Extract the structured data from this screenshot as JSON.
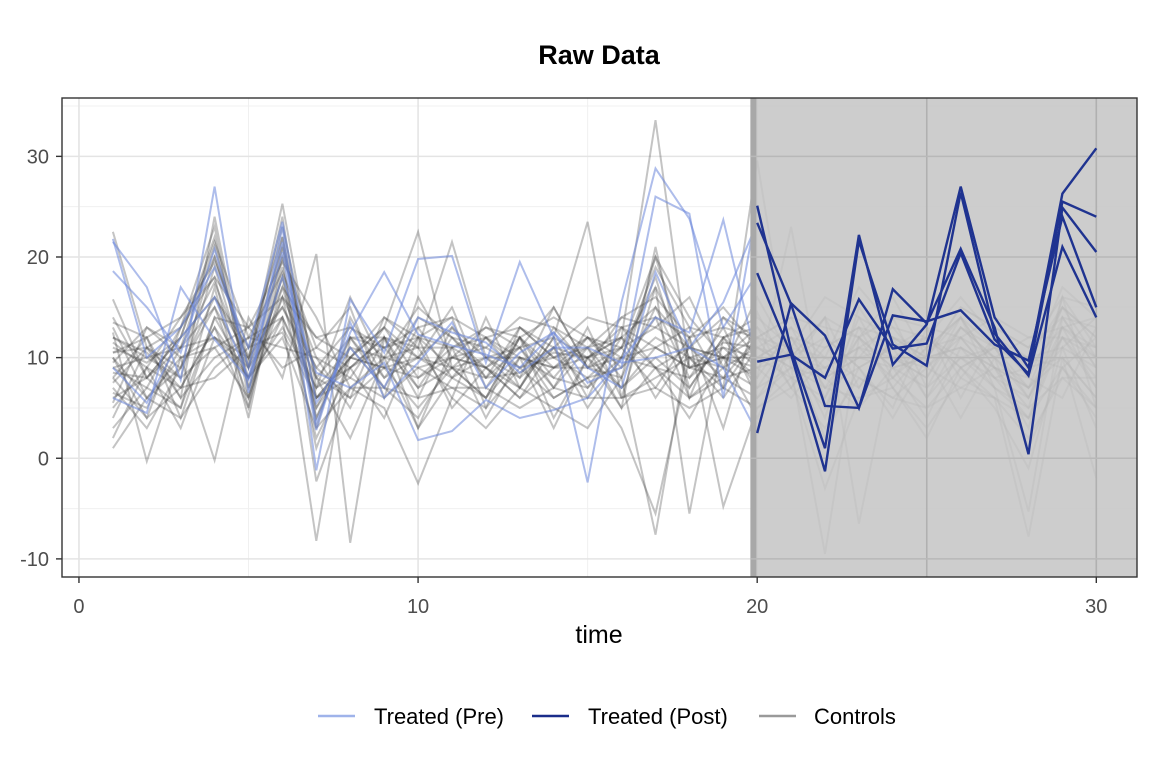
{
  "chart_data": {
    "type": "line",
    "title": "Raw Data",
    "xlabel": "time",
    "ylabel": "",
    "xlim": [
      -0.5,
      31.2
    ],
    "ylim": [
      -11.8,
      35.8
    ],
    "x_ticks": [
      0,
      10,
      20,
      30
    ],
    "x_tick_labels": [
      "0",
      "10",
      "20",
      "30"
    ],
    "y_ticks": [
      -10,
      0,
      10,
      20,
      30
    ],
    "y_tick_labels": [
      "-10",
      "0",
      "10",
      "20",
      "30"
    ],
    "shaded_region": {
      "x_start": 19.8,
      "x_end": 31.2
    },
    "grid": true,
    "legend_position": "bottom",
    "legend": [
      {
        "label": "Treated (Pre)",
        "color": "#9fb3ea"
      },
      {
        "label": "Treated (Post)",
        "color": "#1a2d8a"
      },
      {
        "label": "Controls",
        "color": "#9a9a9a"
      }
    ],
    "treated_pre_color": "#6b87db",
    "treated_post_color": "#1f3390",
    "controls_color": "#3a3a3a",
    "shade_color": "#c6c6c6",
    "x": [
      1,
      2,
      3,
      4,
      5,
      6,
      7,
      8,
      9,
      10,
      11,
      12,
      13,
      14,
      15,
      16,
      17,
      18,
      19,
      20,
      21,
      22,
      23,
      24,
      25,
      26,
      27,
      28,
      29,
      30
    ],
    "treated": [
      {
        "values": [
          21.5,
          17.0,
          7.8,
          27.0,
          6.5,
          23.0,
          -1.2,
          15.8,
          10.5,
          19.8,
          20.1,
          9.5,
          19.5,
          12.0,
          -2.4,
          15.5,
          28.8,
          23.8,
          13.0,
          18.4,
          10.3,
          -1.3,
          21.6,
          11.3,
          9.2,
          26.4,
          12.4,
          8.2,
          21.0,
          14.0
        ]
      },
      {
        "values": [
          18.6,
          15.0,
          10.5,
          20.8,
          9.0,
          21.5,
          3.5,
          12.5,
          18.5,
          12.3,
          11.2,
          10.3,
          9.0,
          12.5,
          7.5,
          9.0,
          26.0,
          24.3,
          6.0,
          25.1,
          10.8,
          1.0,
          22.2,
          9.3,
          13.3,
          27.0,
          14.0,
          9.0,
          26.3,
          30.8
        ]
      },
      {
        "values": [
          6.0,
          4.5,
          17.0,
          11.8,
          7.8,
          18.0,
          8.5,
          7.0,
          9.5,
          1.8,
          2.7,
          5.8,
          4.0,
          4.8,
          6.0,
          9.8,
          14.0,
          12.5,
          23.7,
          9.6,
          10.3,
          8.0,
          15.8,
          10.9,
          11.4,
          20.4,
          11.8,
          8.4,
          25.5,
          24.0
        ]
      },
      {
        "values": [
          21.8,
          10.0,
          13.0,
          19.0,
          11.0,
          23.5,
          5.5,
          11.0,
          7.0,
          14.0,
          12.5,
          11.5,
          8.5,
          11.0,
          11.0,
          9.5,
          10.0,
          11.0,
          9.0,
          2.5,
          15.4,
          12.2,
          5.0,
          16.8,
          13.4,
          20.8,
          13.0,
          0.4,
          24.9,
          20.5
        ]
      },
      {
        "values": [
          9.0,
          5.5,
          12.0,
          16.0,
          8.0,
          20.5,
          2.8,
          13.5,
          6.0,
          9.5,
          13.5,
          7.0,
          10.5,
          12.5,
          9.0,
          7.0,
          18.5,
          11.0,
          15.5,
          23.4,
          15.3,
          5.2,
          5.0,
          14.2,
          13.6,
          14.7,
          11.3,
          9.7,
          24.0,
          15.0
        ]
      }
    ],
    "controls": [
      {
        "values": [
          22.5,
          11.0,
          13.0,
          20.0,
          9.5,
          25.3,
          7.0,
          16.0,
          9.0,
          14.0,
          12.0,
          8.0,
          8.5,
          10.5,
          10.0,
          12.0,
          33.6,
          9.0,
          11.5,
          11.0,
          9.0,
          14.0,
          7.0,
          12.0,
          10.0,
          14.0,
          9.0,
          5.0,
          16.0,
          11.0
        ]
      },
      {
        "values": [
          1.0,
          6.0,
          4.0,
          9.0,
          12.0,
          14.0,
          -8.2,
          12.0,
          7.0,
          4.0,
          10.0,
          9.0,
          11.0,
          6.0,
          8.0,
          3.0,
          -5.5,
          10.0,
          7.0,
          29.6,
          9.0,
          -9.5,
          12.0,
          7.0,
          3.0,
          8.0,
          6.0,
          -7.8,
          10.0,
          -2.0
        ]
      },
      {
        "values": [
          12.5,
          -0.3,
          10.0,
          -0.2,
          14.0,
          8.0,
          20.3,
          -8.4,
          12.0,
          3.0,
          8.0,
          6.0,
          12.0,
          4.0,
          10.0,
          11.0,
          7.0,
          12.0,
          3.0,
          14.5,
          8.0,
          6.0,
          12.0,
          9.0,
          4.0,
          11.0,
          7.0,
          -5.3,
          14.0,
          9.0
        ]
      },
      {
        "values": [
          8.0,
          12.0,
          6.0,
          24.0,
          7.0,
          18.0,
          5.0,
          10.0,
          13.0,
          22.5,
          9.0,
          12.0,
          8.0,
          15.0,
          9.0,
          11.0,
          20.0,
          14.0,
          10.0,
          8.0,
          23.0,
          5.0,
          11.0,
          13.0,
          9.0,
          12.0,
          10.0,
          7.0,
          15.0,
          12.0
        ]
      },
      {
        "values": [
          15.8,
          8.0,
          12.0,
          16.0,
          10.0,
          21.0,
          8.0,
          6.0,
          14.0,
          11.0,
          21.5,
          10.0,
          7.0,
          12.0,
          23.5,
          6.0,
          17.0,
          -5.5,
          12.0,
          13.0,
          10.0,
          14.0,
          -6.5,
          10.0,
          8.0,
          13.0,
          11.0,
          6.0,
          12.0,
          10.0
        ]
      },
      {
        "values": [
          5.0,
          9.0,
          7.0,
          13.0,
          8.0,
          16.0,
          2.0,
          9.0,
          11.0,
          7.0,
          9.0,
          6.0,
          10.0,
          8.0,
          7.0,
          12.0,
          9.0,
          8.0,
          11.0,
          10.0,
          12.0,
          7.0,
          9.0,
          11.0,
          6.0,
          10.0,
          8.0,
          4.0,
          12.0,
          7.0
        ]
      },
      {
        "values": [
          10.0,
          4.0,
          13.0,
          18.0,
          5.0,
          19.0,
          4.0,
          12.0,
          8.0,
          12.0,
          14.0,
          5.0,
          13.0,
          10.0,
          11.0,
          5.0,
          21.0,
          6.0,
          14.0,
          12.0,
          7.0,
          11.0,
          13.0,
          7.0,
          11.0,
          14.0,
          9.0,
          3.0,
          16.0,
          5.0
        ]
      },
      {
        "values": [
          12.0,
          10.0,
          8.0,
          11.0,
          13.0,
          9.0,
          11.0,
          9.0,
          12.0,
          10.0,
          8.0,
          12.0,
          9.0,
          11.0,
          10.0,
          13.0,
          9.0,
          11.0,
          8.0,
          12.0,
          10.0,
          9.0,
          11.0,
          10.0,
          12.0,
          9.0,
          11.0,
          10.0,
          9.0,
          12.0
        ]
      },
      {
        "values": [
          3.0,
          7.0,
          5.0,
          17.0,
          4.0,
          20.0,
          -2.3,
          7.0,
          5.0,
          -2.5,
          6.0,
          3.0,
          7.0,
          5.0,
          3.0,
          8.0,
          -7.6,
          12.0,
          -4.8,
          5.0,
          8.0,
          -3.0,
          6.0,
          7.0,
          2.0,
          9.0,
          5.0,
          -1.0,
          11.0,
          3.0
        ]
      },
      {
        "values": [
          9.5,
          13.0,
          11.0,
          21.0,
          9.0,
          17.0,
          12.0,
          10.0,
          14.0,
          12.0,
          11.0,
          13.0,
          12.0,
          14.0,
          12.0,
          10.0,
          19.0,
          13.0,
          12.0,
          14.0,
          11.0,
          16.0,
          14.0,
          12.0,
          10.0,
          15.0,
          13.0,
          11.0,
          14.0,
          13.0
        ]
      },
      {
        "values": [
          7.0,
          3.0,
          9.0,
          15.0,
          6.0,
          22.0,
          6.0,
          8.0,
          6.0,
          9.0,
          7.0,
          5.0,
          9.0,
          6.0,
          8.0,
          9.0,
          14.0,
          6.0,
          9.0,
          7.0,
          9.0,
          8.0,
          5.0,
          9.0,
          7.0,
          10.0,
          7.0,
          5.0,
          8.0,
          8.0
        ]
      },
      {
        "values": [
          11.5,
          9.0,
          14.0,
          19.5,
          11.0,
          15.0,
          9.0,
          13.0,
          10.0,
          15.0,
          12.0,
          11.0,
          14.0,
          13.0,
          11.0,
          14.0,
          16.0,
          12.0,
          15.0,
          11.0,
          13.0,
          10.0,
          17.0,
          13.0,
          12.0,
          16.0,
          12.0,
          9.0,
          17.0,
          14.0
        ]
      },
      {
        "values": [
          13.0,
          6.0,
          10.0,
          12.0,
          8.0,
          18.0,
          1.0,
          10.0,
          9.0,
          8.0,
          10.0,
          9.0,
          6.0,
          9.0,
          10.0,
          7.0,
          11.0,
          9.0,
          8.0,
          9.0,
          6.0,
          10.0,
          8.0,
          6.0,
          9.0,
          7.0,
          9.0,
          7.0,
          10.0,
          6.0
        ]
      },
      {
        "values": [
          4.0,
          11.0,
          6.0,
          10.0,
          12.0,
          11.0,
          10.0,
          5.0,
          12.0,
          6.0,
          13.0,
          8.0,
          11.0,
          7.0,
          13.0,
          6.0,
          8.0,
          10.0,
          6.0,
          11.0,
          10.0,
          12.0,
          9.0,
          5.0,
          13.0,
          6.0,
          12.0,
          8.0,
          6.0,
          13.0
        ]
      },
      {
        "values": [
          8.5,
          8.0,
          12.0,
          22.0,
          7.0,
          14.0,
          7.0,
          11.0,
          7.0,
          13.0,
          8.0,
          10.0,
          8.0,
          11.0,
          7.0,
          10.0,
          18.0,
          7.0,
          12.0,
          9.0,
          12.0,
          6.0,
          14.0,
          8.0,
          11.0,
          12.0,
          8.0,
          6.0,
          14.0,
          9.0
        ]
      },
      {
        "values": [
          10.5,
          12.0,
          4.0,
          14.0,
          13.0,
          19.5,
          14.0,
          7.0,
          10.0,
          11.0,
          6.0,
          14.0,
          7.0,
          12.0,
          6.0,
          13.0,
          11.0,
          13.0,
          7.0,
          12.0,
          14.0,
          8.0,
          10.0,
          14.0,
          7.0,
          13.0,
          10.0,
          12.0,
          12.0,
          11.0
        ]
      },
      {
        "values": [
          6.5,
          5.0,
          11.0,
          17.5,
          9.0,
          24.0,
          3.0,
          14.0,
          8.0,
          10.0,
          15.0,
          7.0,
          12.0,
          8.0,
          12.0,
          8.0,
          15.0,
          8.0,
          13.0,
          6.0,
          11.0,
          4.0,
          15.0,
          10.0,
          8.0,
          14.0,
          7.0,
          4.0,
          13.0,
          7.0
        ]
      },
      {
        "values": [
          12.0,
          10.5,
          7.0,
          8.0,
          11.0,
          12.5,
          6.0,
          10.0,
          13.0,
          8.0,
          11.0,
          12.0,
          10.0,
          9.0,
          11.0,
          12.0,
          6.0,
          11.0,
          10.0,
          13.0,
          7.0,
          12.0,
          9.0,
          11.0,
          13.0,
          8.0,
          12.0,
          10.0,
          11.0,
          14.0
        ]
      },
      {
        "values": [
          9.0,
          7.0,
          13.0,
          23.0,
          6.0,
          17.0,
          5.0,
          12.0,
          11.0,
          12.0,
          9.0,
          8.0,
          13.0,
          10.0,
          8.0,
          11.0,
          17.0,
          10.0,
          11.0,
          8.0,
          13.0,
          7.0,
          12.0,
          9.0,
          10.0,
          11.0,
          9.0,
          8.0,
          15.0,
          10.0
        ]
      },
      {
        "values": [
          2.0,
          9.0,
          3.0,
          12.0,
          10.0,
          15.0,
          8.0,
          2.0,
          10.0,
          3.0,
          11.0,
          4.0,
          10.0,
          3.0,
          10.0,
          5.0,
          9.0,
          4.0,
          10.0,
          4.0,
          11.0,
          2.0,
          9.0,
          4.0,
          10.0,
          4.0,
          10.0,
          1.0,
          9.0,
          4.0
        ]
      },
      {
        "values": [
          14.0,
          8.0,
          11.0,
          15.0,
          9.0,
          20.0,
          11.0,
          15.0,
          6.0,
          16.0,
          10.0,
          13.0,
          11.0,
          15.0,
          9.0,
          14.0,
          13.0,
          16.0,
          9.0,
          16.0,
          10.0,
          14.0,
          12.0,
          16.0,
          10.0,
          15.0,
          13.0,
          11.0,
          16.0,
          15.0
        ]
      },
      {
        "values": [
          7.5,
          11.0,
          8.0,
          19.0,
          8.0,
          13.0,
          7.0,
          9.0,
          12.0,
          7.0,
          12.0,
          9.0,
          7.0,
          13.0,
          9.0,
          8.0,
          20.0,
          9.0,
          10.0,
          10.0,
          8.0,
          9.0,
          11.0,
          8.0,
          12.0,
          9.0,
          11.0,
          7.0,
          12.0,
          8.0
        ]
      },
      {
        "values": [
          10.0,
          6.0,
          9.0,
          16.0,
          11.0,
          22.0,
          4.0,
          11.0,
          10.0,
          9.0,
          10.0,
          11.0,
          9.0,
          10.0,
          12.0,
          9.0,
          12.0,
          10.0,
          9.0,
          11.0,
          9.0,
          5.0,
          13.0,
          10.0,
          9.0,
          13.0,
          10.0,
          6.0,
          13.0,
          11.0
        ]
      },
      {
        "values": [
          5.5,
          13.0,
          10.0,
          11.0,
          6.0,
          16.0,
          9.0,
          6.0,
          9.0,
          5.0,
          9.0,
          6.0,
          12.0,
          7.0,
          11.0,
          7.0,
          10.0,
          7.0,
          12.0,
          7.0,
          12.0,
          9.0,
          7.0,
          12.0,
          6.0,
          12.0,
          8.0,
          9.0,
          10.0,
          6.0
        ]
      },
      {
        "values": [
          11.0,
          9.5,
          12.0,
          21.5,
          12.0,
          18.5,
          10.0,
          8.0,
          13.0,
          10.0,
          13.0,
          10.0,
          11.0,
          12.0,
          10.0,
          12.0,
          15.0,
          11.0,
          14.0,
          10.0,
          12.0,
          11.0,
          13.0,
          12.0,
          11.0,
          14.0,
          11.0,
          10.0,
          15.0,
          12.0
        ]
      },
      {
        "values": [
          8.0,
          4.0,
          7.0,
          13.0,
          5.0,
          21.0,
          6.0,
          9.0,
          4.0,
          12.0,
          5.0,
          9.0,
          6.0,
          11.0,
          5.0,
          10.0,
          9.0,
          6.0,
          8.0,
          6.0,
          9.0,
          7.0,
          6.0,
          8.0,
          5.0,
          9.0,
          6.0,
          4.0,
          9.0,
          5.0
        ]
      },
      {
        "values": [
          13.5,
          12.0,
          14.0,
          18.0,
          13.0,
          16.0,
          12.0,
          13.0,
          11.0,
          13.0,
          14.0,
          12.0,
          13.0,
          11.0,
          14.0,
          13.0,
          14.0,
          12.0,
          13.0,
          12.0,
          14.0,
          13.0,
          12.0,
          14.0,
          13.0,
          12.0,
          14.0,
          12.0,
          13.0,
          14.0
        ]
      },
      {
        "values": [
          6.0,
          8.0,
          5.0,
          14.0,
          8.0,
          12.0,
          3.0,
          7.0,
          7.0,
          6.0,
          7.0,
          7.0,
          5.0,
          7.0,
          6.0,
          6.0,
          7.0,
          5.0,
          7.0,
          5.0,
          7.0,
          3.0,
          8.0,
          6.0,
          5.0,
          7.0,
          6.0,
          2.0,
          8.0,
          5.0
        ]
      },
      {
        "values": [
          10.5,
          11.0,
          9.0,
          20.0,
          10.0,
          23.0,
          8.0,
          12.0,
          12.0,
          11.0,
          11.0,
          9.0,
          12.0,
          9.0,
          12.0,
          11.0,
          13.0,
          11.0,
          10.0,
          12.0,
          11.0,
          10.0,
          10.0,
          11.0,
          12.0,
          10.0,
          11.0,
          9.0,
          13.0,
          10.0
        ]
      },
      {
        "values": [
          9.0,
          10.0,
          11.0,
          12.0,
          9.0,
          14.0,
          6.0,
          10.0,
          9.0,
          10.0,
          9.0,
          10.0,
          10.0,
          9.0,
          9.0,
          10.0,
          11.0,
          9.0,
          10.0,
          9.0,
          10.0,
          8.0,
          10.0,
          9.0,
          10.0,
          11.0,
          9.0,
          7.0,
          11.0,
          9.0
        ]
      }
    ]
  }
}
